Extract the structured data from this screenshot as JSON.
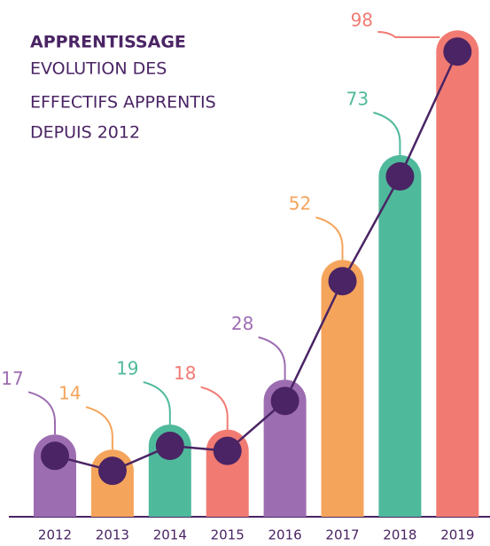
{
  "chart_data": {
    "type": "bar",
    "title": "APPRENTISSAGE",
    "subtitle": [
      "EVOLUTION DES",
      "EFFECTIFS APPRENTIS",
      "DEPUIS 2012"
    ],
    "categories": [
      "2012",
      "2013",
      "2014",
      "2015",
      "2016",
      "2017",
      "2018",
      "2019"
    ],
    "values": [
      17,
      14,
      19,
      18,
      28,
      52,
      73,
      98
    ],
    "colors": [
      "#9d6db1",
      "#f5a45c",
      "#4fb99c",
      "#f17b73",
      "#9d6db1",
      "#f5a45c",
      "#4fb99c",
      "#f17b73"
    ],
    "line_color": "#4a2464"
  }
}
